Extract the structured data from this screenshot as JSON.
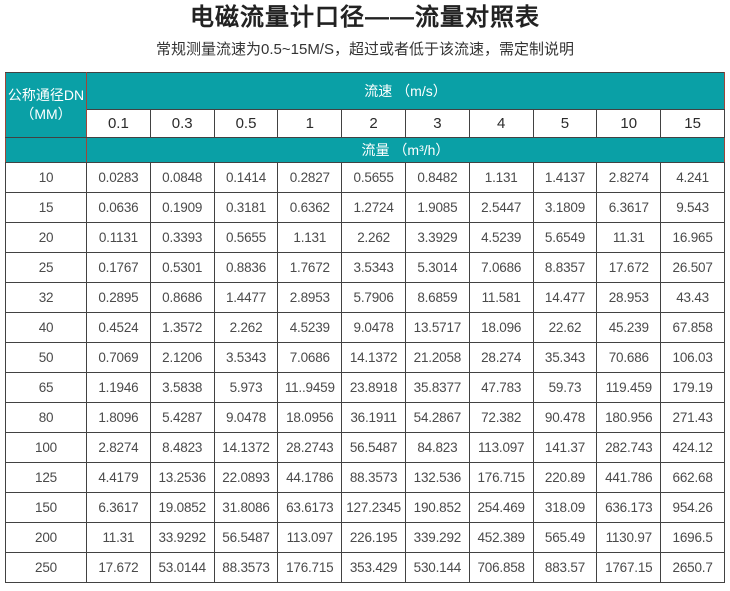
{
  "accent_color": "#0aa0a6",
  "header_border_color": "#a04538",
  "header": {
    "title": "电磁流量计口径——流量对照表",
    "subtitle": "常规测量流速为0.5~15M/S，超过或者低于该流速，需定制说明"
  },
  "table": {
    "corner_header": "公称通径DN\n（MM）",
    "velocity_header": "流速 （m/s）",
    "flow_header": "流量 （m³/h）",
    "velocity_values": [
      "0.1",
      "0.3",
      "0.5",
      "1",
      "2",
      "3",
      "4",
      "5",
      "10",
      "15"
    ],
    "rows": [
      {
        "dn": "10",
        "values": [
          "0.0283",
          "0.0848",
          "0.1414",
          "0.2827",
          "0.5655",
          "0.8482",
          "1.131",
          "1.4137",
          "2.8274",
          "4.241"
        ]
      },
      {
        "dn": "15",
        "values": [
          "0.0636",
          "0.1909",
          "0.3181",
          "0.6362",
          "1.2724",
          "1.9085",
          "2.5447",
          "3.1809",
          "6.3617",
          "9.543"
        ]
      },
      {
        "dn": "20",
        "values": [
          "0.1131",
          "0.3393",
          "0.5655",
          "1.131",
          "2.262",
          "3.3929",
          "4.5239",
          "5.6549",
          "11.31",
          "16.965"
        ]
      },
      {
        "dn": "25",
        "values": [
          "0.1767",
          "0.5301",
          "0.8836",
          "1.7672",
          "3.5343",
          "5.3014",
          "7.0686",
          "8.8357",
          "17.672",
          "26.507"
        ]
      },
      {
        "dn": "32",
        "values": [
          "0.2895",
          "0.8686",
          "1.4477",
          "2.8953",
          "5.7906",
          "8.6859",
          "11.581",
          "14.477",
          "28.953",
          "43.43"
        ]
      },
      {
        "dn": "40",
        "values": [
          "0.4524",
          "1.3572",
          "2.262",
          "4.5239",
          "9.0478",
          "13.5717",
          "18.096",
          "22.62",
          "45.239",
          "67.858"
        ]
      },
      {
        "dn": "50",
        "values": [
          "0.7069",
          "2.1206",
          "3.5343",
          "7.0686",
          "14.1372",
          "21.2058",
          "28.274",
          "35.343",
          "70.686",
          "106.03"
        ]
      },
      {
        "dn": "65",
        "values": [
          "1.1946",
          "3.5838",
          "5.973",
          "11..9459",
          "23.8918",
          "35.8377",
          "47.783",
          "59.73",
          "119.459",
          "179.19"
        ]
      },
      {
        "dn": "80",
        "values": [
          "1.8096",
          "5.4287",
          "9.0478",
          "18.0956",
          "36.1911",
          "54.2867",
          "72.382",
          "90.478",
          "180.956",
          "271.43"
        ]
      },
      {
        "dn": "100",
        "values": [
          "2.8274",
          "8.4823",
          "14.1372",
          "28.2743",
          "56.5487",
          "84.823",
          "113.097",
          "141.37",
          "282.743",
          "424.12"
        ]
      },
      {
        "dn": "125",
        "values": [
          "4.4179",
          "13.2536",
          "22.0893",
          "44.1786",
          "88.3573",
          "132.536",
          "176.715",
          "220.89",
          "441.786",
          "662.68"
        ]
      },
      {
        "dn": "150",
        "values": [
          "6.3617",
          "19.0852",
          "31.8086",
          "63.6173",
          "127.2345",
          "190.852",
          "254.469",
          "318.09",
          "636.173",
          "954.26"
        ]
      },
      {
        "dn": "200",
        "values": [
          "11.31",
          "33.9292",
          "56.5487",
          "113.097",
          "226.195",
          "339.292",
          "452.389",
          "565.49",
          "1130.97",
          "1696.5"
        ]
      },
      {
        "dn": "250",
        "values": [
          "17.672",
          "53.0144",
          "88.3573",
          "176.715",
          "353.429",
          "530.144",
          "706.858",
          "883.57",
          "1767.15",
          "2650.7"
        ]
      }
    ]
  }
}
